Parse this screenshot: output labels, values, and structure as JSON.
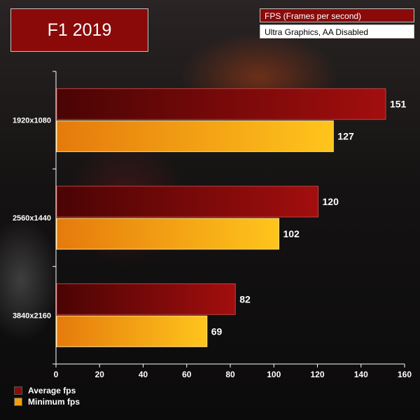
{
  "header": {
    "title": "F1 2019",
    "metric": "FPS (Frames per second)",
    "settings": "Ultra Graphics, AA Disabled"
  },
  "colors": {
    "average": "#8b0c0c",
    "minimum": "#f2a010"
  },
  "chart_data": {
    "type": "bar",
    "orientation": "horizontal",
    "categories": [
      "1920x1080",
      "2560x1440",
      "3840x2160"
    ],
    "series": [
      {
        "name": "Average fps",
        "values": [
          151,
          120,
          82
        ]
      },
      {
        "name": "Minimum fps",
        "values": [
          127,
          102,
          69
        ]
      }
    ],
    "xlim": [
      0,
      160
    ],
    "xticks": [
      0,
      20,
      40,
      60,
      80,
      100,
      120,
      140,
      160
    ],
    "legend": "bottom-left",
    "grid": false
  }
}
